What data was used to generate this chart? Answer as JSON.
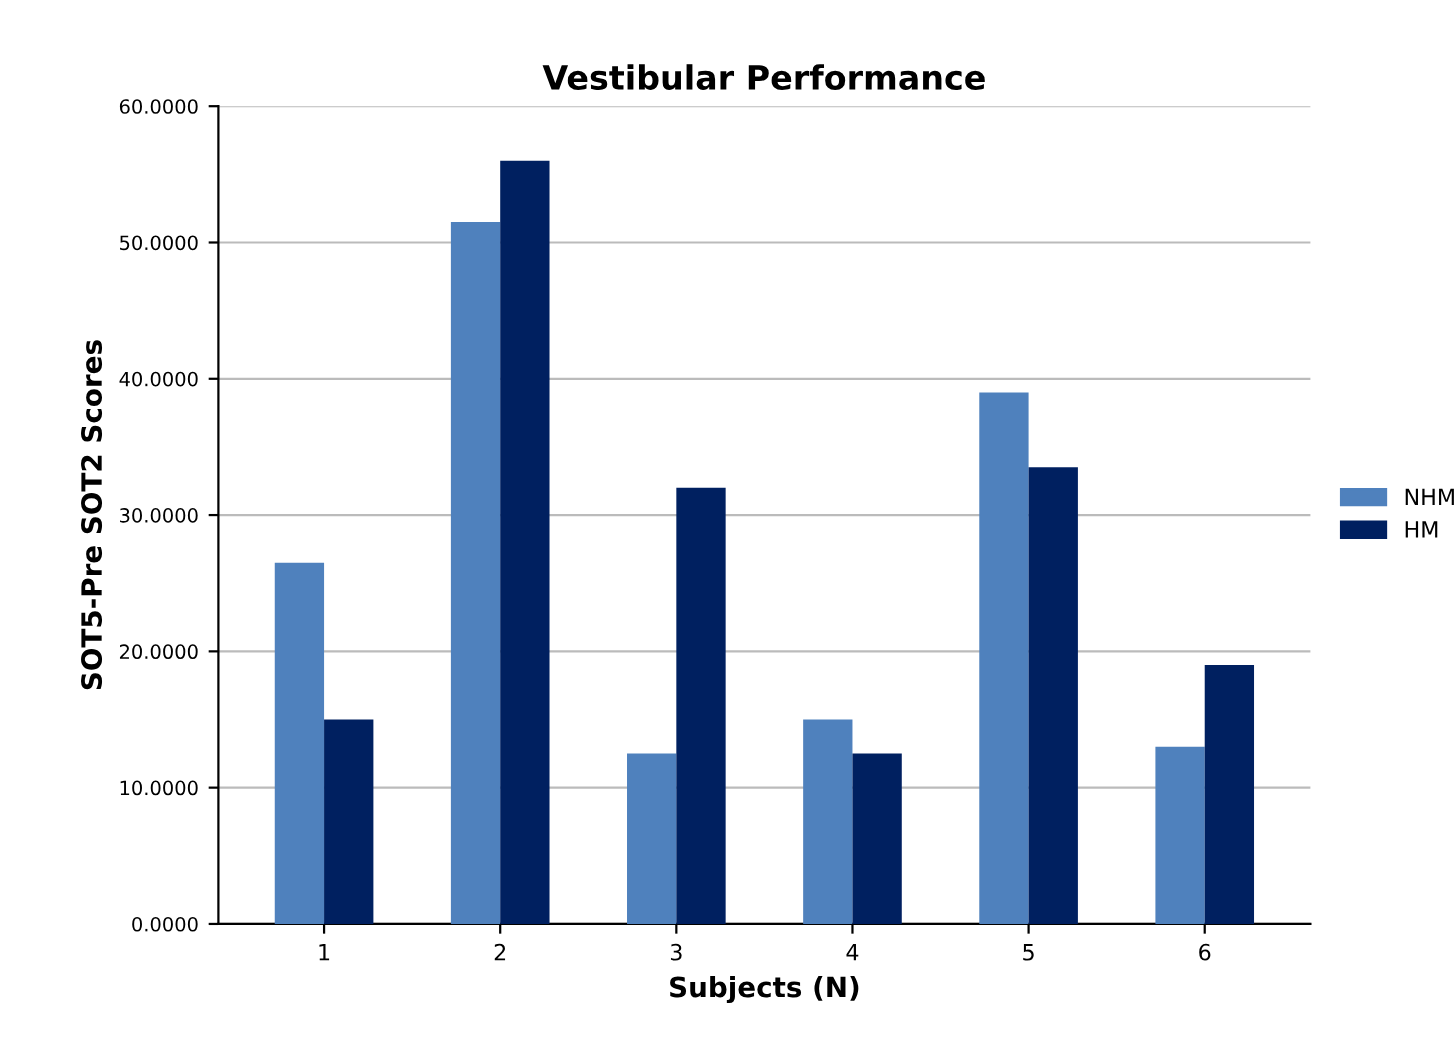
{
  "chart_data": {
    "type": "bar",
    "title": "Vestibular Performance",
    "xlabel": "Subjects (N)",
    "ylabel": "SOT5-Pre SOT2 Scores",
    "categories": [
      "1",
      "2",
      "3",
      "4",
      "5",
      "6"
    ],
    "series": [
      {
        "name": "NHM",
        "color": "#4f81bd",
        "values": [
          26.5,
          51.5,
          12.5,
          15,
          39,
          13
        ]
      },
      {
        "name": "HM",
        "color": "#002060",
        "values": [
          15,
          56,
          32,
          12.5,
          33.5,
          19
        ]
      }
    ],
    "ylim": [
      0,
      60
    ],
    "yticks": [
      {
        "value": 0,
        "label": "0.0000"
      },
      {
        "value": 10,
        "label": "10.0000"
      },
      {
        "value": 20,
        "label": "20.0000"
      },
      {
        "value": 30,
        "label": "30.0000"
      },
      {
        "value": 40,
        "label": "40.0000"
      },
      {
        "value": 50,
        "label": "50.0000"
      },
      {
        "value": 60,
        "label": "60.0000"
      }
    ],
    "grid": "y",
    "legend": "right"
  }
}
